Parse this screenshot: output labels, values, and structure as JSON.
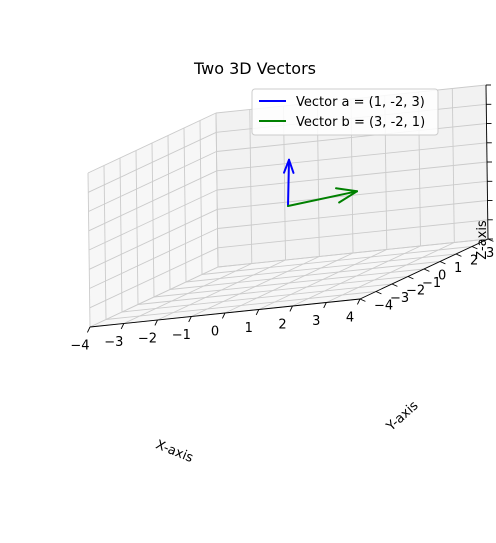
{
  "chart_data": {
    "type": "line",
    "projection": "3d",
    "title": "Two 3D Vectors",
    "xlabel": "X-axis",
    "ylabel": "Y-axis",
    "zlabel": "Z-axis",
    "xlim": [
      -4,
      4
    ],
    "ylim": [
      -4,
      4
    ],
    "zlim": [
      -4,
      4
    ],
    "ticks": [
      -4,
      -3,
      -2,
      -1,
      0,
      1,
      2,
      3,
      4
    ],
    "grid": true,
    "legend_position": "top-right",
    "series": [
      {
        "name": "Vector a = (1, -2, 3)",
        "origin": [
          0,
          0,
          0
        ],
        "vector": [
          1,
          -2,
          3
        ],
        "color": "#0000ff"
      },
      {
        "name": "Vector b = (3, -2, 1)",
        "origin": [
          0,
          0,
          0
        ],
        "vector": [
          3,
          -2,
          1
        ],
        "color": "#008000"
      }
    ]
  }
}
